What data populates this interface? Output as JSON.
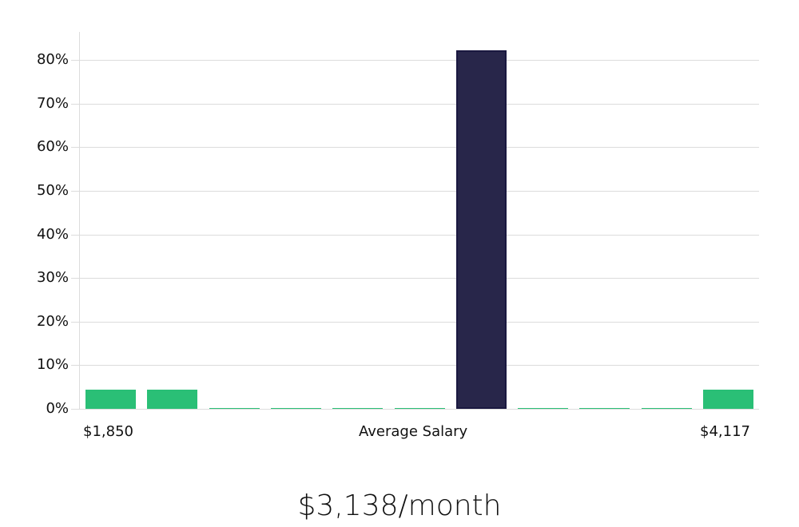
{
  "chart_data": {
    "type": "bar",
    "title": "",
    "subtitle": "$3,138/month",
    "xlabel": "Average Salary",
    "ylabel": "",
    "x_range_labels": {
      "min": "$1,850",
      "max": "$4,117"
    },
    "categories": [
      "1",
      "2",
      "3",
      "4",
      "5",
      "6",
      "7",
      "8",
      "9",
      "10",
      "11"
    ],
    "values": [
      4.4,
      4.4,
      0.2,
      0.2,
      0.2,
      0.2,
      82.2,
      0.2,
      0.2,
      0.2,
      4.4
    ],
    "highlight_index": 6,
    "yticks": [
      "0%",
      "10%",
      "20%",
      "30%",
      "40%",
      "50%",
      "60%",
      "70%",
      "80%"
    ],
    "ylim": [
      0,
      86
    ],
    "grid": true,
    "legend": "none",
    "colors": {
      "bar": "#2abf76",
      "highlight": "#28264a",
      "highlight_border": "#1a1840",
      "grid": "#dcdcdc"
    }
  },
  "labels": {
    "x_min": "$1,850",
    "x_center": "Average Salary",
    "x_max": "$4,117",
    "summary": "$3,138/month"
  }
}
